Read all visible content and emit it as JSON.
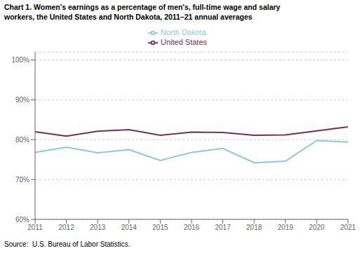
{
  "chart_data": {
    "type": "line",
    "title": "Chart 1. Women's earnings as a percentage of men's, full-time wage and salary\nworkers, the United States and North Dakota, 2011–21 annual averages",
    "x": [
      2011,
      2012,
      2013,
      2014,
      2015,
      2016,
      2017,
      2018,
      2019,
      2020,
      2021
    ],
    "series": [
      {
        "name": "United States",
        "color": "#722F5B",
        "values": [
          82.0,
          80.9,
          82.1,
          82.5,
          81.1,
          81.9,
          81.8,
          81.1,
          81.2,
          82.2,
          83.2
        ]
      },
      {
        "name": "North Dakota",
        "color": "#92C5E0",
        "values": [
          76.8,
          78.1,
          76.7,
          77.5,
          74.8,
          76.8,
          77.8,
          74.2,
          74.6,
          79.8,
          79.4
        ]
      }
    ],
    "xlim": [
      2011,
      2021
    ],
    "xticks": [
      2011,
      2012,
      2013,
      2014,
      2015,
      2016,
      2017,
      2018,
      2019,
      2020,
      2021
    ],
    "ylim": [
      60,
      102
    ],
    "yticks": [
      {
        "value": 60,
        "label": "60%"
      },
      {
        "value": 70,
        "label": "70%"
      },
      {
        "value": 80,
        "label": "80%"
      },
      {
        "value": 90,
        "label": "90%"
      },
      {
        "value": 100,
        "label": "100%"
      }
    ],
    "grid": true,
    "legend": "top",
    "annotations": [
      "Source:  U.S. Bureau of Labor Statistics."
    ]
  }
}
